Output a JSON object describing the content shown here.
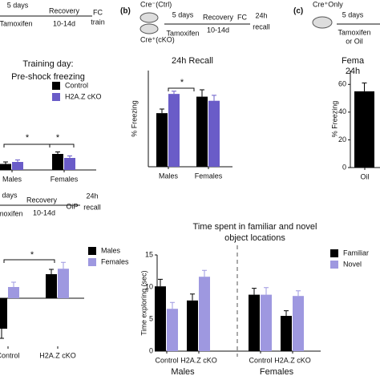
{
  "panel_labels": [
    "(b)",
    "(c)"
  ],
  "timelines": {
    "a": {
      "days": "5 days",
      "drug": "Tamoxifen",
      "recovery": "Recovery",
      "recovery_time": "10-14d",
      "test": "FC",
      "test2": "train"
    },
    "b": {
      "ctrl": "Cre⁻(Ctrl)",
      "cko": "Cre⁺(cKO)",
      "days": "5 days",
      "drug": "Tamoxifen",
      "recovery": "Recovery",
      "recovery_time": "10-14d",
      "test": "FC",
      "recall": "24h",
      "recall2": "recall"
    },
    "c": {
      "group": "Cre⁺Only",
      "days": "5 days",
      "drug": "Tamoxifen",
      "drug2": "or Oil"
    },
    "d": {
      "days": "days",
      "drug": "Tamoxifen",
      "recovery": "Recovery",
      "recovery_time": "10-14d",
      "test": "OiP",
      "recall": "24h",
      "recall2": "recall"
    }
  },
  "chart_data": [
    {
      "type": "bar",
      "title": [
        "Training day:",
        "Pre-shock freezing"
      ],
      "categories": [
        "Males",
        "Females"
      ],
      "series": [
        {
          "name": "Control",
          "color": "#000000",
          "values": [
            3,
            8
          ],
          "errors": [
            1,
            1
          ]
        },
        {
          "name": "H2A.Z cKO",
          "color": "#6a5cc8",
          "values": [
            4,
            6
          ],
          "errors": [
            1,
            1
          ]
        }
      ],
      "ylim": [
        0,
        40
      ],
      "legend": true,
      "annotations": [
        "*",
        "*"
      ]
    },
    {
      "type": "bar",
      "title": [
        "24h Recall"
      ],
      "y_label": "% Freezing",
      "categories": [
        "Males",
        "Females"
      ],
      "series": [
        {
          "name": "Control",
          "color": "#000000",
          "values": [
            39,
            51
          ],
          "errors": [
            3,
            5
          ]
        },
        {
          "name": "H2A.Z cKO",
          "color": "#6a5cc8",
          "values": [
            53,
            48
          ],
          "errors": [
            2,
            4
          ]
        }
      ],
      "ylim": [
        0,
        70
      ],
      "legend": false,
      "annotations": [
        "*"
      ]
    },
    {
      "type": "bar",
      "title": [
        "Fema",
        "24h"
      ],
      "y_label": "% Freezing",
      "categories": [
        "Oil"
      ],
      "series": [
        {
          "name": "Oil",
          "color": "#000000",
          "values": [
            55
          ],
          "errors": [
            6
          ]
        }
      ],
      "ylim": [
        0,
        70
      ],
      "yticks": [
        0,
        20,
        40,
        60
      ],
      "legend": false
    },
    {
      "type": "bar",
      "categories": [
        "Control",
        "H2A.Z cKO"
      ],
      "series": [
        {
          "name": "Males",
          "color": "#000000",
          "values": [
            -0.95,
            0.75
          ],
          "errors": [
            0.3,
            0.15
          ]
        },
        {
          "name": "Females",
          "color": "#9e98e0",
          "values": [
            0.35,
            0.92
          ],
          "errors": [
            0.15,
            0.2
          ]
        }
      ],
      "ylim": [
        -1.5,
        1.5
      ],
      "legend": true,
      "annotations": [
        "*"
      ]
    },
    {
      "type": "bar",
      "title": [
        "Time spent in familiar and novel",
        "object locations"
      ],
      "y_label": "Time exploring (sec)",
      "categories": [
        "Control",
        "H2A.Z cKO",
        "Control",
        "H2A.Z cKO"
      ],
      "group_labels": [
        "Males",
        "Females"
      ],
      "series": [
        {
          "name": "Familiar",
          "color": "#000000",
          "values": [
            10.1,
            7.9,
            8.8,
            5.5
          ],
          "errors": [
            1.1,
            1,
            1,
            0.8
          ]
        },
        {
          "name": "Novel",
          "color": "#9e98e0",
          "values": [
            6.6,
            11.6,
            8.8,
            8.6
          ],
          "errors": [
            1,
            1,
            1.1,
            0.8
          ]
        }
      ],
      "ylim": [
        0,
        15
      ],
      "yticks": [
        0,
        5,
        10,
        15
      ],
      "legend": true
    }
  ]
}
